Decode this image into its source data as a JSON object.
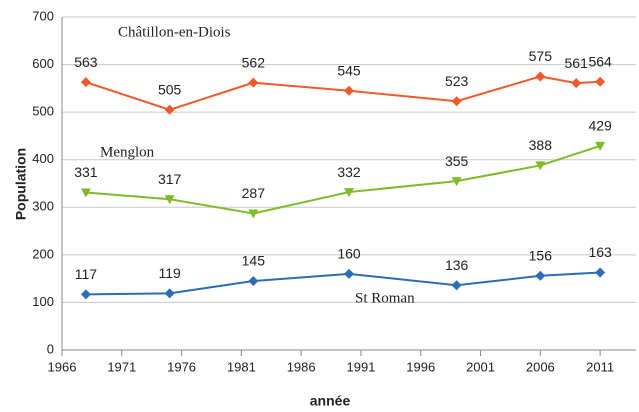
{
  "chart_data": {
    "type": "line",
    "x_label": "année",
    "y_label": "Population",
    "xlim": [
      1966,
      2014
    ],
    "xticks": [
      1966,
      1971,
      1976,
      1981,
      1986,
      1991,
      1996,
      2001,
      2006,
      2011
    ],
    "ylim": [
      0,
      700
    ],
    "yticks": [
      0,
      100,
      200,
      300,
      400,
      500,
      600,
      700
    ],
    "grid": true,
    "series": [
      {
        "name": "Châtillon-en-Diois",
        "color": "#f0592b",
        "marker": "diamond",
        "x": [
          1968,
          1975,
          1982,
          1990,
          1999,
          2006,
          2009,
          2011
        ],
        "values": [
          563,
          505,
          562,
          545,
          523,
          575,
          561,
          564
        ]
      },
      {
        "name": "Menglon",
        "color": "#7dbb2a",
        "marker": "triangle-down",
        "x": [
          1968,
          1975,
          1982,
          1990,
          1999,
          2006,
          2011
        ],
        "values": [
          331,
          317,
          287,
          332,
          355,
          388,
          429
        ]
      },
      {
        "name": "St Roman",
        "color": "#2b6cb5",
        "marker": "diamond",
        "x": [
          1968,
          1975,
          1982,
          1990,
          1999,
          2006,
          2011
        ],
        "values": [
          117,
          119,
          145,
          160,
          136,
          156,
          163
        ]
      }
    ]
  }
}
